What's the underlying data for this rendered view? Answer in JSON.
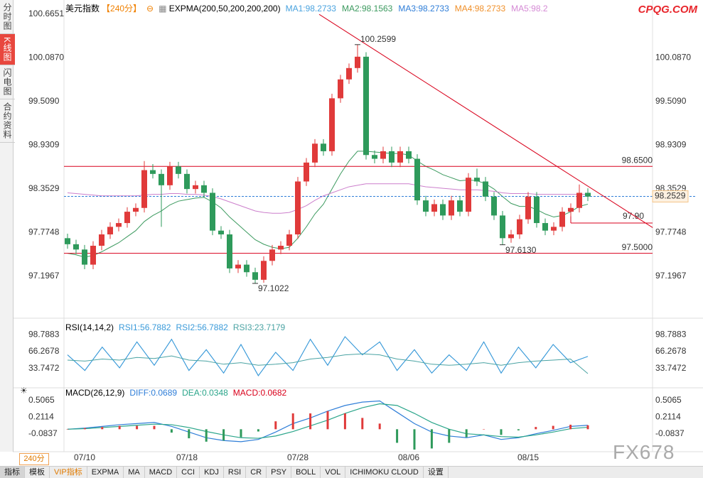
{
  "header": {
    "symbol": "美元指数",
    "period": "【240分】",
    "indicator": "EXPMA(200,50,200,200,200)",
    "ma_labels": [
      {
        "text": "MA1:98.2733",
        "color": "#4aa3df"
      },
      {
        "text": "MA2:98.1563",
        "color": "#3c9a5f"
      },
      {
        "text": "MA3:98.2733",
        "color": "#2f7ed8"
      },
      {
        "text": "MA4:98.2733",
        "color": "#f0902a"
      },
      {
        "text": "MA5:98.2",
        "color": "#d58ad5"
      }
    ]
  },
  "logo": "CPQG.COM",
  "watermark": "FX678",
  "sidebar": [
    "分时图",
    "K线图",
    "闪电图",
    "合约资料"
  ],
  "sidebar_active": 1,
  "period_select": "240分",
  "toolbar": [
    "指标",
    "模板",
    "VIP指标",
    "EXPMA",
    "MA",
    "MACD",
    "CCI",
    "KDJ",
    "RSI",
    "CR",
    "PSY",
    "BOLL",
    "VOL",
    "ICHIMOKU CLOUD",
    "设置"
  ],
  "chart_data": [
    {
      "type": "candlestick",
      "up_color": "#e03a3a",
      "down_color": "#2e9a5b",
      "ylim": [
        96.67,
        100.85
      ],
      "yticks": [
        100.6651,
        {
          "value": 100.087,
          "label": "100.0870"
        },
        {
          "value": 99.509,
          "label": "99.5090"
        },
        98.9309,
        98.3529,
        97.7748,
        97.1967
      ],
      "categories": [
        null,
        null,
        "07/10",
        null,
        null,
        null,
        null,
        null,
        null,
        null,
        null,
        null,
        null,
        null,
        "07/18",
        null,
        null,
        null,
        null,
        null,
        null,
        null,
        null,
        null,
        null,
        null,
        null,
        "07/28",
        null,
        null,
        null,
        null,
        null,
        null,
        null,
        null,
        null,
        null,
        null,
        null,
        "08/06",
        null,
        null,
        null,
        null,
        null,
        null,
        null,
        null,
        null,
        null,
        null,
        null,
        null,
        "08/15",
        null,
        null,
        null,
        null,
        null,
        null,
        null
      ],
      "ohlc": [
        [
          97.7,
          97.76,
          97.56,
          97.62
        ],
        [
          97.62,
          97.68,
          97.49,
          97.55
        ],
        [
          97.55,
          97.61,
          97.29,
          97.35
        ],
        [
          97.35,
          97.66,
          97.29,
          97.6
        ],
        [
          97.6,
          97.81,
          97.54,
          97.75
        ],
        [
          97.75,
          97.91,
          97.69,
          97.85
        ],
        [
          97.85,
          97.96,
          97.79,
          97.9
        ],
        [
          97.9,
          98.11,
          97.84,
          98.05
        ],
        [
          98.05,
          98.16,
          97.99,
          98.1
        ],
        [
          98.1,
          98.72,
          98.04,
          98.6
        ],
        [
          98.6,
          98.68,
          98.49,
          98.55
        ],
        [
          98.55,
          98.61,
          97.85,
          98.4
        ],
        [
          98.4,
          98.71,
          98.34,
          98.65
        ],
        [
          98.65,
          98.71,
          98.49,
          98.55
        ],
        [
          98.55,
          98.61,
          98.29,
          98.35
        ],
        [
          98.35,
          98.46,
          98.29,
          98.4
        ],
        [
          98.4,
          98.46,
          98.24,
          98.3
        ],
        [
          98.3,
          98.36,
          97.74,
          97.8
        ],
        [
          97.8,
          97.86,
          97.69,
          97.75
        ],
        [
          97.75,
          97.81,
          97.24,
          97.3
        ],
        [
          97.3,
          97.41,
          97.24,
          97.35
        ],
        [
          97.35,
          97.41,
          97.19,
          97.25
        ],
        [
          97.25,
          97.31,
          97.1022,
          97.15
        ],
        [
          97.15,
          97.46,
          97.11,
          97.4
        ],
        [
          97.4,
          97.61,
          97.34,
          97.55
        ],
        [
          97.55,
          97.66,
          97.49,
          97.6
        ],
        [
          97.6,
          97.81,
          97.54,
          97.75
        ],
        [
          97.75,
          98.51,
          97.69,
          98.45
        ],
        [
          98.45,
          98.76,
          98.39,
          98.7
        ],
        [
          98.7,
          99.01,
          98.64,
          98.95
        ],
        [
          98.95,
          99.01,
          98.79,
          98.85
        ],
        [
          98.85,
          99.61,
          98.79,
          99.55
        ],
        [
          99.55,
          99.86,
          99.49,
          99.8
        ],
        [
          99.8,
          100.01,
          99.74,
          99.95
        ],
        [
          99.95,
          100.2599,
          99.89,
          100.1
        ],
        [
          100.1,
          100.16,
          98.74,
          98.8
        ],
        [
          98.8,
          98.86,
          98.69,
          98.75
        ],
        [
          98.75,
          98.91,
          98.69,
          98.85
        ],
        [
          98.85,
          98.91,
          98.64,
          98.7
        ],
        [
          98.7,
          98.91,
          98.64,
          98.85
        ],
        [
          98.85,
          98.91,
          98.69,
          98.75
        ],
        [
          98.75,
          98.81,
          98.14,
          98.2
        ],
        [
          98.2,
          98.26,
          97.99,
          98.05
        ],
        [
          98.05,
          98.21,
          97.99,
          98.15
        ],
        [
          98.15,
          98.21,
          97.94,
          98.0
        ],
        [
          98.0,
          98.26,
          97.94,
          98.2
        ],
        [
          98.2,
          98.26,
          97.99,
          98.05
        ],
        [
          98.05,
          98.56,
          97.99,
          98.5
        ],
        [
          98.5,
          98.62,
          98.39,
          98.45
        ],
        [
          98.45,
          98.51,
          98.19,
          98.25
        ],
        [
          98.25,
          98.31,
          97.94,
          98.0
        ],
        [
          98.0,
          98.06,
          97.613,
          97.7
        ],
        [
          97.7,
          97.81,
          97.64,
          97.75
        ],
        [
          97.75,
          98.01,
          97.69,
          97.95
        ],
        [
          97.95,
          98.31,
          97.89,
          98.25
        ],
        [
          98.25,
          98.31,
          97.84,
          97.9
        ],
        [
          97.9,
          97.96,
          97.74,
          97.8
        ],
        [
          97.8,
          97.91,
          97.74,
          97.85
        ],
        [
          97.85,
          98.11,
          97.79,
          98.05
        ],
        [
          98.05,
          98.16,
          97.99,
          98.1
        ],
        [
          98.1,
          98.41,
          98.04,
          98.3
        ],
        [
          98.3,
          98.36,
          98.19,
          98.25
        ]
      ],
      "lines": [
        {
          "color": "#3c9a5f",
          "values": [
            97.5,
            97.48,
            97.45,
            97.47,
            97.52,
            97.58,
            97.64,
            97.72,
            97.8,
            97.92,
            98.0,
            98.06,
            98.14,
            98.19,
            98.21,
            98.23,
            98.24,
            98.18,
            98.1,
            97.98,
            97.88,
            97.78,
            97.68,
            97.62,
            97.58,
            97.56,
            97.58,
            97.7,
            97.85,
            98.02,
            98.15,
            98.35,
            98.55,
            98.72,
            98.85,
            98.85,
            98.84,
            98.83,
            98.82,
            98.82,
            98.8,
            98.72,
            98.65,
            98.6,
            98.54,
            98.5,
            98.46,
            98.47,
            98.46,
            98.42,
            98.35,
            98.25,
            98.16,
            98.12,
            98.12,
            98.08,
            98.02,
            97.98,
            98.0,
            98.05,
            98.12,
            98.15
          ]
        },
        {
          "color": "#cc7fcc",
          "values": [
            98.3,
            98.29,
            98.28,
            98.27,
            98.26,
            98.26,
            98.26,
            98.26,
            98.26,
            98.27,
            98.28,
            98.28,
            98.29,
            98.29,
            98.28,
            98.28,
            98.27,
            98.25,
            98.22,
            98.18,
            98.14,
            98.1,
            98.06,
            98.04,
            98.03,
            98.03,
            98.04,
            98.08,
            98.13,
            98.2,
            98.26,
            98.3,
            98.34,
            98.38,
            98.4,
            98.42,
            98.42,
            98.42,
            98.42,
            98.42,
            98.42,
            98.4,
            98.38,
            98.37,
            98.36,
            98.35,
            98.34,
            98.34,
            98.34,
            98.33,
            98.32,
            98.3,
            98.29,
            98.29,
            98.29,
            98.28,
            98.28,
            98.28,
            98.28,
            98.28,
            98.28,
            98.28
          ]
        }
      ],
      "levels": [
        {
          "value": 98.65,
          "label": "98.6500",
          "color": "#d9001b"
        },
        {
          "value": 97.5,
          "label": "97.5000",
          "color": "#d9001b"
        }
      ],
      "order_line": {
        "value": 97.9,
        "label": "97.90",
        "color": "#d9001b"
      },
      "last": 98.2529,
      "extremes": [
        {
          "value": 100.2599,
          "kind": "high",
          "color": "#e03a3a"
        },
        {
          "value": 97.1022,
          "kind": "low",
          "color": "#3c9a5f"
        },
        {
          "value": 97.613,
          "label": "97.6130",
          "kind": "low",
          "color": "#3c9a5f"
        }
      ],
      "trendline": {
        "from": [
          29.5,
          100.66
        ],
        "to": [
          68.6,
          97.84
        ],
        "color": "#d9001b"
      }
    },
    {
      "type": "line",
      "title": "RSI(14,14,2)",
      "ylim": [
        -2,
        121
      ],
      "yticks": [
        98.7883,
        66.2678,
        33.7472
      ],
      "series": [
        {
          "name": "RSI1:56.7882",
          "color": "#3a9ad9",
          "values": [
            60,
            30,
            75,
            35,
            85,
            40,
            90,
            30,
            70,
            25,
            80,
            20,
            65,
            30,
            90,
            40,
            95,
            60,
            85,
            30,
            70,
            25,
            60,
            30,
            85,
            25,
            75,
            35,
            80,
            45,
            57
          ]
        },
        {
          "name": "RSI2:56.7882",
          "color": "#3a9ad9",
          "values": [
            60,
            30,
            75,
            35,
            85,
            40,
            90,
            30,
            70,
            25,
            80,
            20,
            65,
            30,
            90,
            40,
            95,
            60,
            85,
            30,
            70,
            25,
            60,
            30,
            85,
            25,
            75,
            35,
            80,
            45,
            57
          ]
        },
        {
          "name": "RSI3:23.7179",
          "color": "#4aa3a3",
          "values": [
            50,
            48,
            52,
            50,
            55,
            53,
            58,
            50,
            48,
            42,
            45,
            40,
            42,
            45,
            52,
            55,
            60,
            62,
            60,
            52,
            48,
            42,
            40,
            42,
            45,
            40,
            45,
            48,
            50,
            52,
            24
          ]
        }
      ]
    },
    {
      "type": "macd",
      "title": "MACD(26,12,9)",
      "ylim": [
        -0.385,
        0.657
      ],
      "yticks": [
        0.5065,
        0.2114,
        -0.0837
      ],
      "up_color": "#e03a3a",
      "down_color": "#2e9a5b",
      "series": [
        {
          "name": "DIFF:0.0689",
          "color": "#2f7ed8",
          "values": [
            0.0,
            0.02,
            0.05,
            0.08,
            0.1,
            0.12,
            0.05,
            -0.05,
            -0.15,
            -0.2,
            -0.22,
            -0.18,
            -0.05,
            0.1,
            0.2,
            0.32,
            0.42,
            0.48,
            0.5,
            0.3,
            0.1,
            -0.05,
            -0.12,
            -0.15,
            -0.1,
            -0.18,
            -0.15,
            -0.08,
            -0.02,
            0.05,
            0.07
          ]
        },
        {
          "name": "DEA:0.0348",
          "color": "#2aa58a",
          "values": [
            0.0,
            0.01,
            0.03,
            0.05,
            0.07,
            0.09,
            0.08,
            0.03,
            -0.04,
            -0.1,
            -0.15,
            -0.16,
            -0.12,
            -0.04,
            0.06,
            0.16,
            0.28,
            0.38,
            0.45,
            0.42,
            0.28,
            0.12,
            0.0,
            -0.08,
            -0.1,
            -0.13,
            -0.14,
            -0.1,
            -0.05,
            0.01,
            0.035
          ]
        },
        {
          "name": "MACD:0.0682",
          "color": "#d9001b",
          "histogram": true,
          "values": [
            0,
            0.02,
            0.04,
            0.06,
            0.06,
            0.06,
            -0.06,
            -0.16,
            -0.22,
            -0.2,
            -0.14,
            -0.04,
            0.14,
            0.28,
            0.28,
            0.32,
            0.28,
            0.2,
            0.1,
            -0.24,
            -0.36,
            -0.34,
            -0.24,
            -0.14,
            0.0,
            -0.1,
            -0.02,
            0.04,
            0.06,
            0.08,
            0.07
          ]
        }
      ]
    }
  ]
}
